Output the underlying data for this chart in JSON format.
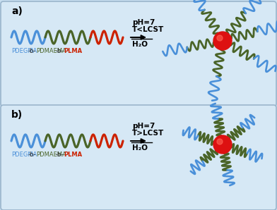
{
  "bg_color": "#d6e8f5",
  "bg_color_outer": "#c8dff0",
  "blue_color": "#4a90d9",
  "green_color": "#4a6428",
  "red_color": "#cc2200",
  "core_color": "#dd1111",
  "panel_a_label": "a)",
  "panel_b_label": "b)",
  "cond_a_line1": "pH=7",
  "cond_a_line2": "T<LCST",
  "cond_a_line3": "H₂O",
  "cond_b_line1": "pH=7",
  "cond_b_line2": "T>LCST",
  "cond_b_line3": "H₂O"
}
